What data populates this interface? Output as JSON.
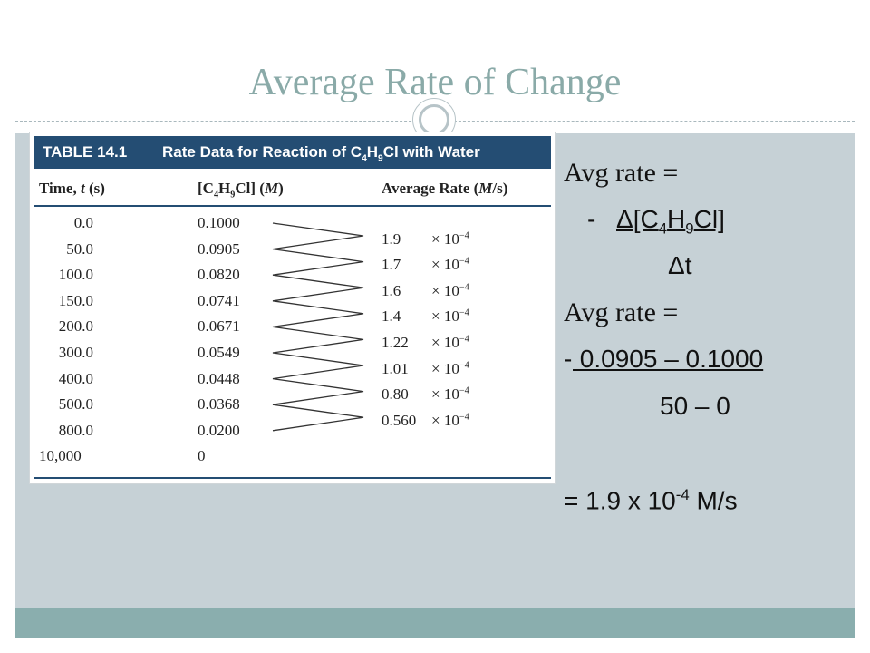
{
  "slide": {
    "title": "Average Rate of Change"
  },
  "table": {
    "number": "TABLE 14.1",
    "caption": "Rate Data for Reaction of C4H9Cl with Water",
    "caption_prefix": "Rate Data for Reaction of C",
    "caption_sub1": "4",
    "caption_mid": "H",
    "caption_sub2": "9",
    "caption_suffix": "Cl with Water",
    "headers": {
      "time": "Time, t (s)",
      "conc": "[C4H9Cl] (M)",
      "rate": "Average Rate (M/s)"
    },
    "times": [
      "0.0",
      "50.0",
      "100.0",
      "150.0",
      "200.0",
      "300.0",
      "400.0",
      "500.0",
      "800.0",
      "10,000"
    ],
    "concentrations": [
      "0.1000",
      "0.0905",
      "0.0820",
      "0.0741",
      "0.0671",
      "0.0549",
      "0.0448",
      "0.0368",
      "0.0200",
      "0"
    ],
    "rates": [
      "1.9",
      "1.7",
      "1.6",
      "1.4",
      "1.22",
      "1.01",
      "0.80",
      "0.560"
    ],
    "rate_multiplier": "× 10",
    "rate_exponent": "−4"
  },
  "equation": {
    "avg_rate_label_1": "Avg rate =",
    "minus_1": "-",
    "delta_conc_prefix": "Δ[C",
    "delta_conc_sub1": "4",
    "delta_conc_mid": "H",
    "delta_conc_sub2": "9",
    "delta_conc_suffix": "Cl]",
    "delta_t": "Δt",
    "avg_rate_label_2": "Avg rate =",
    "minus_2": "-",
    "numerator": " 0.0905 – 0.1000",
    "denominator": "50 – 0",
    "result_prefix": "= 1.9 x 10",
    "result_exponent": "-4",
    "result_unit": " M/s"
  }
}
